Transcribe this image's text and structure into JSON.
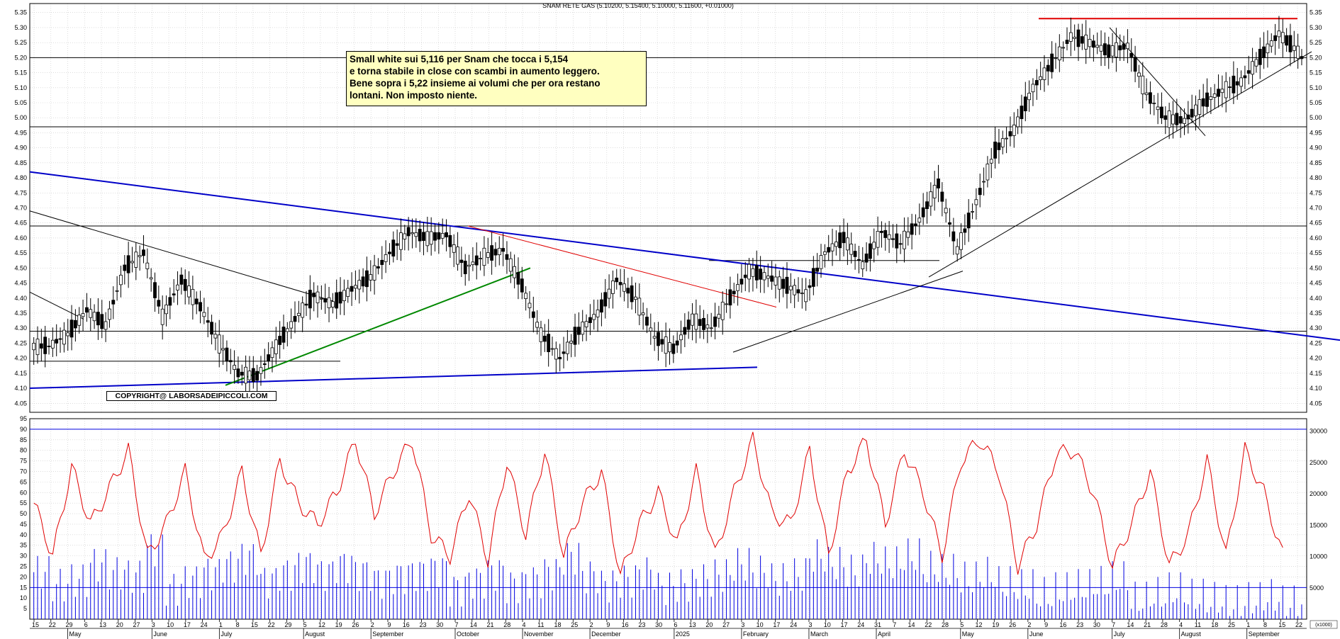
{
  "chart_data": [
    {
      "type": "candlestick",
      "title": "SNAM RETE GAS (5.10200, 5.15400, 5.10000, 5.11600, +0.01000)",
      "y_ticks": [
        "4.05",
        "4.10",
        "4.15",
        "4.20",
        "4.25",
        "4.30",
        "4.35",
        "4.40",
        "4.45",
        "4.50",
        "4.55",
        "4.60",
        "4.65",
        "4.70",
        "4.75",
        "4.80",
        "4.85",
        "4.90",
        "4.95",
        "5.00",
        "5.05",
        "5.10",
        "5.15",
        "5.20",
        "5.25",
        "5.30",
        "5.35"
      ],
      "ylim": [
        4.02,
        5.38
      ],
      "annotation": {
        "lines": [
          "Small white sui 5,116 per Snam che tocca i 5,154",
          "e torna stabile in close con scambi in aumento leggero.",
          "Bene sopra i 5,22 insieme ai volumi che per ora restano",
          "lontani. Non imposto niente."
        ]
      },
      "copyright": "COPYRIGHT@ LABORSADEIPICCOLI.COM",
      "horizontal_levels": [
        5.2,
        4.97,
        4.64,
        4.29,
        4.19,
        4.525
      ],
      "resistance_level": 5.33,
      "closes_weekly": [
        4.24,
        4.28,
        4.36,
        4.31,
        4.5,
        4.55,
        4.34,
        4.46,
        4.37,
        4.25,
        4.15,
        4.14,
        4.24,
        4.33,
        4.41,
        4.38,
        4.43,
        4.47,
        4.55,
        4.62,
        4.6,
        4.61,
        4.5,
        4.54,
        4.56,
        4.44,
        4.28,
        4.2,
        4.29,
        4.35,
        4.46,
        4.4,
        4.27,
        4.23,
        4.33,
        4.3,
        4.4,
        4.49,
        4.47,
        4.44,
        4.41,
        4.55,
        4.6,
        4.51,
        4.62,
        4.58,
        4.66,
        4.78,
        4.56,
        4.72,
        4.89,
        4.96,
        5.1,
        5.18,
        5.27,
        5.25,
        5.22,
        5.24,
        5.08,
        5.0,
        4.99,
        5.05,
        5.09,
        5.12,
        5.2,
        5.28,
        5.22,
        5.12
      ]
    },
    {
      "type": "bar+line",
      "title": "",
      "y_ticks_left": [
        "5",
        "10",
        "15",
        "20",
        "25",
        "30",
        "35",
        "40",
        "45",
        "50",
        "55",
        "60",
        "65",
        "70",
        "75",
        "80",
        "85",
        "90",
        "95"
      ],
      "y_ticks_right": [
        "5000",
        "10000",
        "15000",
        "20000",
        "25000",
        "30000"
      ],
      "scale_label": "(x1000)",
      "volume_average": 4700,
      "oscillator_reference_lines": [
        90,
        15
      ],
      "oscillator_weekly": [
        55,
        30,
        72,
        45,
        62,
        80,
        30,
        45,
        70,
        28,
        40,
        70,
        30,
        75,
        55,
        45,
        60,
        85,
        50,
        70,
        85,
        40,
        30,
        60,
        28,
        75,
        40,
        80,
        30,
        55,
        70,
        20,
        45,
        60,
        35,
        70,
        30,
        60,
        85,
        50,
        45,
        80,
        30,
        70,
        85,
        45,
        80,
        60,
        30,
        75,
        85,
        70,
        25,
        45,
        78,
        80,
        60,
        25,
        45,
        70,
        25,
        40,
        75,
        30,
        80,
        60,
        30,
        45
      ],
      "volume_weekly": [
        30,
        22,
        25,
        35,
        30,
        28,
        45,
        20,
        25,
        30,
        35,
        40,
        25,
        30,
        35,
        30,
        35,
        30,
        25,
        28,
        30,
        32,
        20,
        25,
        30,
        22,
        25,
        30,
        40,
        28,
        22,
        25,
        30,
        20,
        22,
        25,
        28,
        35,
        30,
        25,
        28,
        40,
        35,
        30,
        38,
        35,
        40,
        32,
        30,
        25,
        28,
        22,
        20,
        15,
        18,
        20,
        22,
        25,
        12,
        15,
        18,
        14,
        12,
        10,
        12,
        14,
        10,
        12
      ]
    }
  ],
  "x_day_labels": [
    "15",
    "22",
    "29",
    "6",
    "13",
    "20",
    "27",
    "3",
    "10",
    "17",
    "24",
    "1",
    "8",
    "15",
    "22",
    "29",
    "5",
    "12",
    "19",
    "26",
    "2",
    "9",
    "16",
    "23",
    "30",
    "7",
    "14",
    "21",
    "28",
    "4",
    "11",
    "18",
    "25",
    "2",
    "9",
    "16",
    "23",
    "30",
    "6",
    "13",
    "20",
    "27",
    "3",
    "10",
    "17",
    "24",
    "3",
    "10",
    "17",
    "24",
    "31",
    "7",
    "14",
    "22",
    "28",
    "5",
    "12",
    "19",
    "26",
    "2",
    "9",
    "16",
    "23",
    "30",
    "7",
    "14",
    "21",
    "28",
    "4",
    "11",
    "18",
    "25",
    "1",
    "8",
    "15",
    "22"
  ],
  "x_month_labels": [
    "May",
    "June",
    "July",
    "August",
    "September",
    "October",
    "November",
    "December",
    "2025",
    "February",
    "March",
    "April",
    "May",
    "June",
    "July",
    "August",
    "September"
  ]
}
